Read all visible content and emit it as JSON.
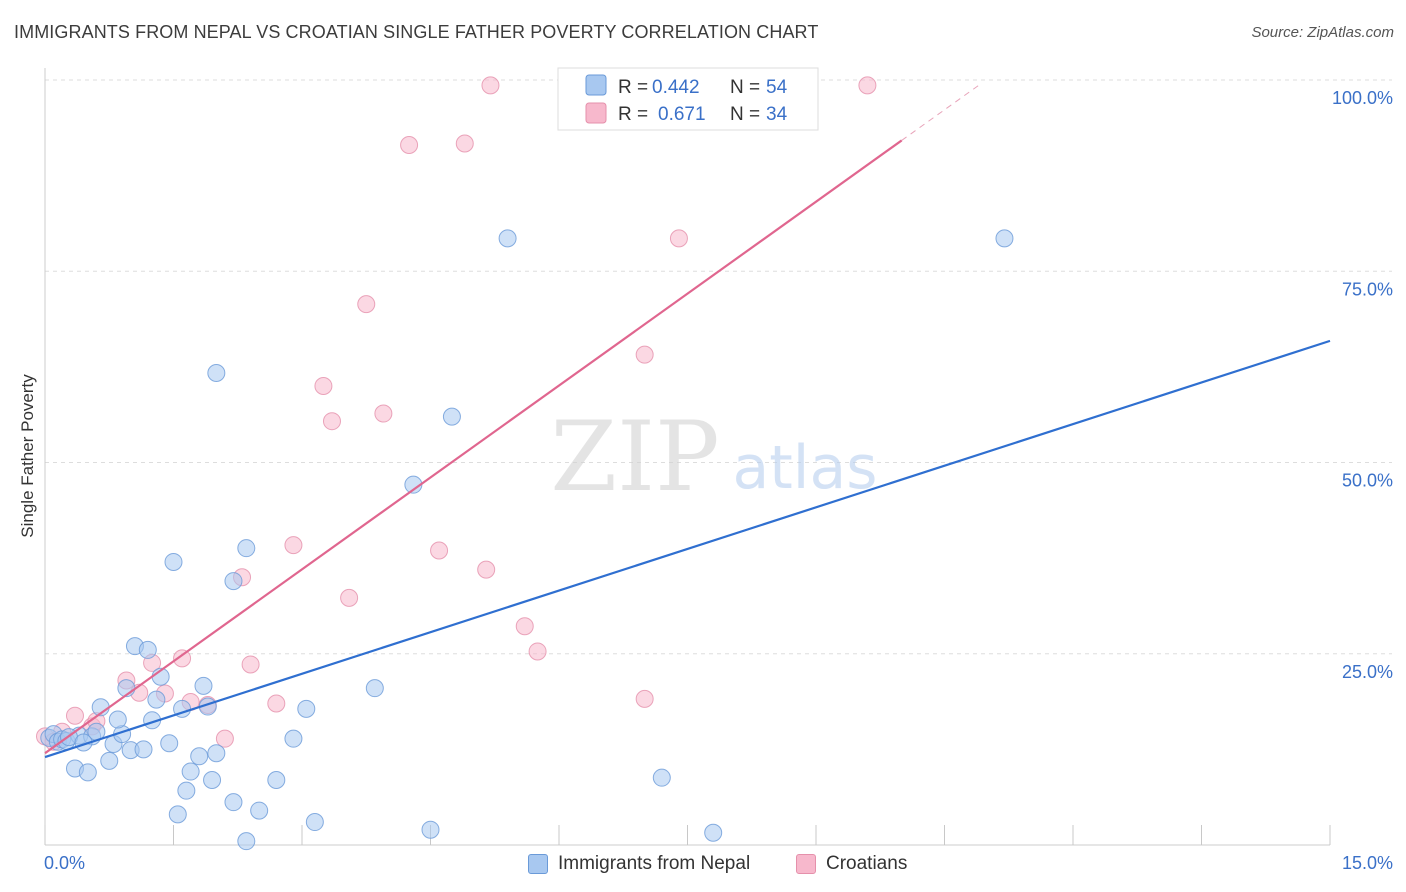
{
  "title": "IMMIGRANTS FROM NEPAL VS CROATIAN SINGLE FATHER POVERTY CORRELATION CHART",
  "source": "Source: ZipAtlas.com",
  "watermark": {
    "zip": "ZIP",
    "atlas": "atlas"
  },
  "colors": {
    "nepal_fill": "#a8c8f0",
    "nepal_stroke": "#6a9ad8",
    "nepal_line": "#2f6fd0",
    "croatian_fill": "#f7b8cc",
    "croatian_stroke": "#e590ab",
    "croatian_line": "#e0668f",
    "axis_label": "#3a70c8",
    "grid": "#dddddd"
  },
  "legend_top": [
    {
      "r_label": "R =",
      "r_value": "0.442",
      "n_label": "N =",
      "n_value": "54"
    },
    {
      "r_label": "R =",
      "r_value": "0.671",
      "n_label": "N =",
      "n_value": "34"
    }
  ],
  "chart_data": {
    "type": "scatter",
    "title": "IMMIGRANTS FROM NEPAL VS CROATIAN SINGLE FATHER POVERTY CORRELATION CHART",
    "xlabel": "",
    "ylabel": "Single Father Poverty",
    "xlim": [
      0,
      15
    ],
    "ylim": [
      0,
      100
    ],
    "x_tick_labels": [
      "0.0%",
      "15.0%"
    ],
    "y_ticks": [
      25,
      50,
      75,
      100
    ],
    "y_tick_labels": [
      "25.0%",
      "50.0%",
      "75.0%",
      "100.0%"
    ],
    "grid": true,
    "legend_position": "top-center and bottom",
    "series": [
      {
        "name": "Immigrants from Nepal",
        "r": 0.442,
        "n": 54,
        "trend": {
          "x": [
            0,
            15
          ],
          "y": [
            11.5,
            65.9
          ]
        },
        "points": [
          [
            0.05,
            14.0
          ],
          [
            0.1,
            14.5
          ],
          [
            0.15,
            13.5
          ],
          [
            0.2,
            13.8
          ],
          [
            0.25,
            13.6
          ],
          [
            0.4,
            14.3
          ],
          [
            0.35,
            10.0
          ],
          [
            0.5,
            9.5
          ],
          [
            0.55,
            14.2
          ],
          [
            0.6,
            14.8
          ],
          [
            0.65,
            18.0
          ],
          [
            0.75,
            11.0
          ],
          [
            0.8,
            13.2
          ],
          [
            0.9,
            14.5
          ],
          [
            0.85,
            16.4
          ],
          [
            0.95,
            20.5
          ],
          [
            1.0,
            12.4
          ],
          [
            1.05,
            26.0
          ],
          [
            1.15,
            12.5
          ],
          [
            1.2,
            25.5
          ],
          [
            1.25,
            16.3
          ],
          [
            1.3,
            19.0
          ],
          [
            1.35,
            22.0
          ],
          [
            1.45,
            13.3
          ],
          [
            1.5,
            37.0
          ],
          [
            1.55,
            4.0
          ],
          [
            1.6,
            17.8
          ],
          [
            1.65,
            7.1
          ],
          [
            1.7,
            9.6
          ],
          [
            1.8,
            11.6
          ],
          [
            1.85,
            20.8
          ],
          [
            1.9,
            18.1
          ],
          [
            1.95,
            8.5
          ],
          [
            2.0,
            12.0
          ],
          [
            2.0,
            61.7
          ],
          [
            2.2,
            5.6
          ],
          [
            2.2,
            34.5
          ],
          [
            2.35,
            0.5
          ],
          [
            2.35,
            38.8
          ],
          [
            2.5,
            4.5
          ],
          [
            2.7,
            8.5
          ],
          [
            2.9,
            13.9
          ],
          [
            3.05,
            17.8
          ],
          [
            3.15,
            3.0
          ],
          [
            3.85,
            20.5
          ],
          [
            4.3,
            47.1
          ],
          [
            4.5,
            2.0
          ],
          [
            4.75,
            56.0
          ],
          [
            5.4,
            79.3
          ],
          [
            7.2,
            8.8
          ],
          [
            7.8,
            1.6
          ],
          [
            11.2,
            79.3
          ],
          [
            0.28,
            14.1
          ],
          [
            0.45,
            13.4
          ]
        ]
      },
      {
        "name": "Croatians",
        "r": 0.671,
        "n": 34,
        "trend": {
          "x": [
            0,
            10.0
          ],
          "y": [
            12.0,
            92.1
          ]
        },
        "points": [
          [
            0.0,
            14.2
          ],
          [
            0.1,
            13.5
          ],
          [
            0.2,
            14.8
          ],
          [
            0.35,
            16.9
          ],
          [
            0.55,
            15.5
          ],
          [
            0.6,
            16.2
          ],
          [
            0.95,
            21.5
          ],
          [
            1.1,
            19.9
          ],
          [
            1.25,
            23.8
          ],
          [
            1.4,
            19.8
          ],
          [
            1.6,
            24.4
          ],
          [
            1.7,
            18.7
          ],
          [
            1.9,
            18.3
          ],
          [
            2.1,
            13.9
          ],
          [
            2.3,
            35.0
          ],
          [
            2.4,
            23.6
          ],
          [
            2.7,
            18.5
          ],
          [
            2.9,
            39.2
          ],
          [
            3.25,
            60.0
          ],
          [
            3.35,
            55.4
          ],
          [
            3.55,
            32.3
          ],
          [
            3.75,
            70.7
          ],
          [
            3.95,
            56.4
          ],
          [
            4.25,
            91.5
          ],
          [
            4.6,
            38.5
          ],
          [
            4.9,
            91.7
          ],
          [
            5.15,
            36.0
          ],
          [
            5.2,
            99.3
          ],
          [
            5.6,
            28.6
          ],
          [
            5.75,
            25.3
          ],
          [
            7.0,
            64.1
          ],
          [
            7.0,
            19.1
          ],
          [
            7.4,
            79.3
          ],
          [
            9.6,
            99.3
          ]
        ]
      }
    ]
  },
  "legend_bottom": [
    {
      "label": "Immigrants from Nepal"
    },
    {
      "label": "Croatians"
    }
  ]
}
